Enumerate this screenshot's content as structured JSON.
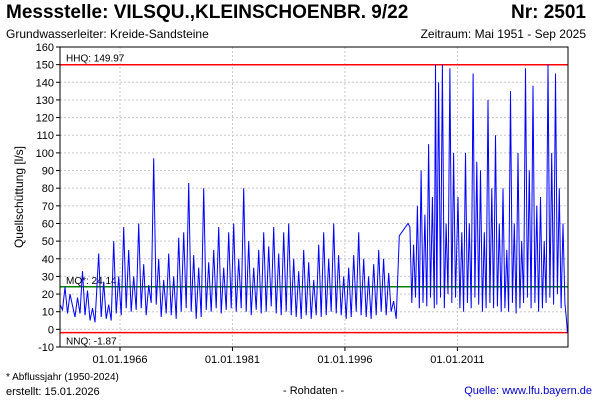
{
  "header": {
    "title_left": "Messstelle: VILSQU.,KLEINSCHOENBR. 9/22",
    "title_right": "Nr: 2501",
    "subtitle_left": "Grundwasserleiter:  Kreide-Sandsteine",
    "subtitle_right": "Zeitraum: Mai 1951 - Sep 2025"
  },
  "footer": {
    "footnote": "* Abflussjahr (1950-2024)",
    "created": "erstellt:  15.01.2026",
    "rohdaten": "- Rohdaten -",
    "source": "Quelle: www.lfu.bayern.de"
  },
  "colors": {
    "series": "#0000ff",
    "hhq": "#ff0000",
    "nnq": "#ff0000",
    "mq": "#008000",
    "grid": "#c8c8c8"
  },
  "chart_data": {
    "type": "line",
    "ylabel": "Quellschüttung [l/s]",
    "xlabel": "",
    "ylim": [
      -10,
      160
    ],
    "yticks": [
      -10,
      0,
      10,
      20,
      30,
      40,
      50,
      60,
      70,
      80,
      90,
      100,
      110,
      120,
      130,
      140,
      150,
      160
    ],
    "xlim": [
      "1958-01-01",
      "2025-10-01"
    ],
    "xticks": [
      "01.01.1966",
      "01.01.1981",
      "01.01.1996",
      "01.01.2011"
    ],
    "grid": true,
    "reference_lines": [
      {
        "label": "HHQ: 149.97",
        "value": 149.97
      },
      {
        "label": "MQ*: 24.14",
        "value": 24.14
      },
      {
        "label": "NNQ: -1.87",
        "value": -1.87
      }
    ],
    "series": [
      {
        "points": [
          [
            "1958-01-01",
            14
          ],
          [
            "1958-05-01",
            11
          ],
          [
            "1958-09-01",
            24
          ],
          [
            "1959-01-01",
            9
          ],
          [
            "1959-05-01",
            20
          ],
          [
            "1960-01-01",
            7
          ],
          [
            "1960-05-01",
            18
          ],
          [
            "1960-09-01",
            9
          ],
          [
            "1961-01-01",
            33
          ],
          [
            "1961-05-01",
            8
          ],
          [
            "1961-09-01",
            22
          ],
          [
            "1962-01-01",
            5
          ],
          [
            "1962-05-01",
            12
          ],
          [
            "1962-09-01",
            4
          ],
          [
            "1963-03-01",
            43
          ],
          [
            "1963-07-01",
            7
          ],
          [
            "1963-11-01",
            27
          ],
          [
            "1964-03-01",
            6
          ],
          [
            "1964-07-01",
            14
          ],
          [
            "1964-11-01",
            5
          ],
          [
            "1965-03-01",
            50
          ],
          [
            "1965-07-01",
            9
          ],
          [
            "1965-11-01",
            30
          ],
          [
            "1966-03-01",
            8
          ],
          [
            "1966-07-01",
            58
          ],
          [
            "1966-11-01",
            12
          ],
          [
            "1967-03-01",
            45
          ],
          [
            "1967-07-01",
            10
          ],
          [
            "1967-11-01",
            30
          ],
          [
            "1968-03-01",
            11
          ],
          [
            "1968-07-01",
            60
          ],
          [
            "1968-11-01",
            12
          ],
          [
            "1969-03-01",
            37
          ],
          [
            "1969-07-01",
            8
          ],
          [
            "1969-11-01",
            25
          ],
          [
            "1970-03-01",
            15
          ],
          [
            "1970-07-01",
            97
          ],
          [
            "1970-11-01",
            14
          ],
          [
            "1971-03-01",
            40
          ],
          [
            "1971-07-01",
            7
          ],
          [
            "1971-11-01",
            28
          ],
          [
            "1972-03-01",
            9
          ],
          [
            "1972-07-01",
            43
          ],
          [
            "1972-11-01",
            8
          ],
          [
            "1973-03-01",
            30
          ],
          [
            "1973-07-01",
            6
          ],
          [
            "1973-11-01",
            52
          ],
          [
            "1974-03-01",
            10
          ],
          [
            "1974-07-01",
            55
          ],
          [
            "1974-11-01",
            12
          ],
          [
            "1975-03-01",
            83
          ],
          [
            "1975-07-01",
            10
          ],
          [
            "1975-11-01",
            42
          ],
          [
            "1976-03-01",
            6
          ],
          [
            "1976-07-01",
            35
          ],
          [
            "1976-11-01",
            7
          ],
          [
            "1977-03-01",
            80
          ],
          [
            "1977-07-01",
            11
          ],
          [
            "1977-11-01",
            38
          ],
          [
            "1978-03-01",
            10
          ],
          [
            "1978-07-01",
            45
          ],
          [
            "1978-11-01",
            12
          ],
          [
            "1979-03-01",
            58
          ],
          [
            "1979-07-01",
            9
          ],
          [
            "1979-11-01",
            35
          ],
          [
            "1980-03-01",
            11
          ],
          [
            "1980-07-01",
            55
          ],
          [
            "1980-11-01",
            12
          ],
          [
            "1981-03-01",
            60
          ],
          [
            "1981-07-01",
            10
          ],
          [
            "1981-11-01",
            40
          ],
          [
            "1982-03-01",
            12
          ],
          [
            "1982-07-01",
            80
          ],
          [
            "1982-11-01",
            10
          ],
          [
            "1983-03-01",
            50
          ],
          [
            "1983-07-01",
            8
          ],
          [
            "1983-11-01",
            35
          ],
          [
            "1984-03-01",
            11
          ],
          [
            "1984-07-01",
            45
          ],
          [
            "1984-11-01",
            9
          ],
          [
            "1985-03-01",
            55
          ],
          [
            "1985-07-01",
            10
          ],
          [
            "1985-11-01",
            47
          ],
          [
            "1986-03-01",
            13
          ],
          [
            "1986-07-01",
            58
          ],
          [
            "1986-11-01",
            9
          ],
          [
            "1987-03-01",
            43
          ],
          [
            "1987-07-01",
            8
          ],
          [
            "1987-11-01",
            55
          ],
          [
            "1988-03-01",
            10
          ],
          [
            "1988-07-01",
            60
          ],
          [
            "1988-11-01",
            8
          ],
          [
            "1989-03-01",
            40
          ],
          [
            "1989-07-01",
            7
          ],
          [
            "1989-11-01",
            33
          ],
          [
            "1990-03-01",
            6
          ],
          [
            "1990-07-01",
            45
          ],
          [
            "1990-11-01",
            8
          ],
          [
            "1991-03-01",
            38
          ],
          [
            "1991-07-01",
            6
          ],
          [
            "1991-11-01",
            28
          ],
          [
            "1992-03-01",
            8
          ],
          [
            "1992-07-01",
            48
          ],
          [
            "1992-11-01",
            7
          ],
          [
            "1993-03-01",
            55
          ],
          [
            "1993-07-01",
            8
          ],
          [
            "1993-11-01",
            40
          ],
          [
            "1994-03-01",
            10
          ],
          [
            "1994-07-01",
            60
          ],
          [
            "1994-11-01",
            9
          ],
          [
            "1995-03-01",
            42
          ],
          [
            "1995-07-01",
            8
          ],
          [
            "1995-11-01",
            30
          ],
          [
            "1996-03-01",
            6
          ],
          [
            "1996-07-01",
            35
          ],
          [
            "1996-11-01",
            7
          ],
          [
            "1997-03-01",
            42
          ],
          [
            "1997-07-01",
            10
          ],
          [
            "1997-11-01",
            55
          ],
          [
            "1998-03-01",
            8
          ],
          [
            "1998-07-01",
            40
          ],
          [
            "1998-11-01",
            7
          ],
          [
            "1999-03-01",
            30
          ],
          [
            "1999-07-01",
            6
          ],
          [
            "1999-11-01",
            37
          ],
          [
            "2000-03-01",
            8
          ],
          [
            "2000-07-01",
            45
          ],
          [
            "2000-11-01",
            10
          ],
          [
            "2001-03-01",
            40
          ],
          [
            "2001-07-01",
            8
          ],
          [
            "2001-11-01",
            32
          ],
          [
            "2002-03-01",
            10
          ],
          [
            "2002-07-01",
            16
          ],
          [
            "2002-11-01",
            6
          ],
          [
            "2003-04-01",
            53
          ],
          [
            "2004-06-01",
            60
          ],
          [
            "2004-09-01",
            58
          ],
          [
            "2004-12-01",
            15
          ],
          [
            "2005-03-01",
            48
          ],
          [
            "2005-06-01",
            18
          ],
          [
            "2005-09-01",
            70
          ],
          [
            "2005-12-01",
            12
          ],
          [
            "2006-03-01",
            90
          ],
          [
            "2006-06-01",
            15
          ],
          [
            "2006-09-01",
            65
          ],
          [
            "2006-12-01",
            13
          ],
          [
            "2007-03-01",
            105
          ],
          [
            "2007-06-01",
            18
          ],
          [
            "2007-09-01",
            75
          ],
          [
            "2007-12-01",
            12
          ],
          [
            "2008-02-01",
            150
          ],
          [
            "2008-04-01",
            14
          ],
          [
            "2008-07-01",
            140
          ],
          [
            "2008-10-01",
            18
          ],
          [
            "2009-01-01",
            150
          ],
          [
            "2009-04-01",
            12
          ],
          [
            "2009-07-01",
            60
          ],
          [
            "2009-10-01",
            20
          ],
          [
            "2010-01-01",
            148
          ],
          [
            "2010-04-01",
            15
          ],
          [
            "2010-07-01",
            100
          ],
          [
            "2010-10-01",
            18
          ],
          [
            "2011-02-01",
            75
          ],
          [
            "2011-05-01",
            12
          ],
          [
            "2011-08-01",
            55
          ],
          [
            "2011-11-01",
            10
          ],
          [
            "2012-02-01",
            100
          ],
          [
            "2012-05-01",
            15
          ],
          [
            "2012-08-01",
            60
          ],
          [
            "2012-11-01",
            12
          ],
          [
            "2013-02-01",
            145
          ],
          [
            "2013-05-01",
            18
          ],
          [
            "2013-08-01",
            95
          ],
          [
            "2013-11-01",
            14
          ],
          [
            "2014-02-01",
            90
          ],
          [
            "2014-05-01",
            10
          ],
          [
            "2014-08-01",
            55
          ],
          [
            "2014-11-01",
            12
          ],
          [
            "2015-02-01",
            130
          ],
          [
            "2015-05-01",
            15
          ],
          [
            "2015-08-01",
            80
          ],
          [
            "2015-11-01",
            12
          ],
          [
            "2016-02-01",
            110
          ],
          [
            "2016-05-01",
            13
          ],
          [
            "2016-08-01",
            60
          ],
          [
            "2016-11-01",
            10
          ],
          [
            "2017-02-01",
            80
          ],
          [
            "2017-05-01",
            12
          ],
          [
            "2017-08-01",
            45
          ],
          [
            "2017-11-01",
            10
          ],
          [
            "2018-02-01",
            135
          ],
          [
            "2018-05-01",
            15
          ],
          [
            "2018-08-01",
            60
          ],
          [
            "2018-11-01",
            9
          ],
          [
            "2019-02-01",
            100
          ],
          [
            "2019-05-01",
            12
          ],
          [
            "2019-08-01",
            50
          ],
          [
            "2019-11-01",
            15
          ],
          [
            "2020-02-01",
            148
          ],
          [
            "2020-05-01",
            18
          ],
          [
            "2020-08-01",
            90
          ],
          [
            "2020-11-01",
            12
          ],
          [
            "2021-02-01",
            138
          ],
          [
            "2021-05-01",
            15
          ],
          [
            "2021-08-01",
            70
          ],
          [
            "2021-11-01",
            10
          ],
          [
            "2022-02-01",
            75
          ],
          [
            "2022-05-01",
            12
          ],
          [
            "2022-08-01",
            50
          ],
          [
            "2022-11-01",
            15
          ],
          [
            "2023-02-01",
            150
          ],
          [
            "2023-05-01",
            18
          ],
          [
            "2023-08-01",
            100
          ],
          [
            "2023-11-01",
            14
          ],
          [
            "2024-02-01",
            145
          ],
          [
            "2024-05-01",
            20
          ],
          [
            "2024-08-01",
            80
          ],
          [
            "2024-11-01",
            12
          ],
          [
            "2025-02-01",
            60
          ],
          [
            "2025-05-01",
            15
          ],
          [
            "2025-08-01",
            4
          ],
          [
            "2025-09-01",
            -2
          ]
        ]
      }
    ]
  }
}
